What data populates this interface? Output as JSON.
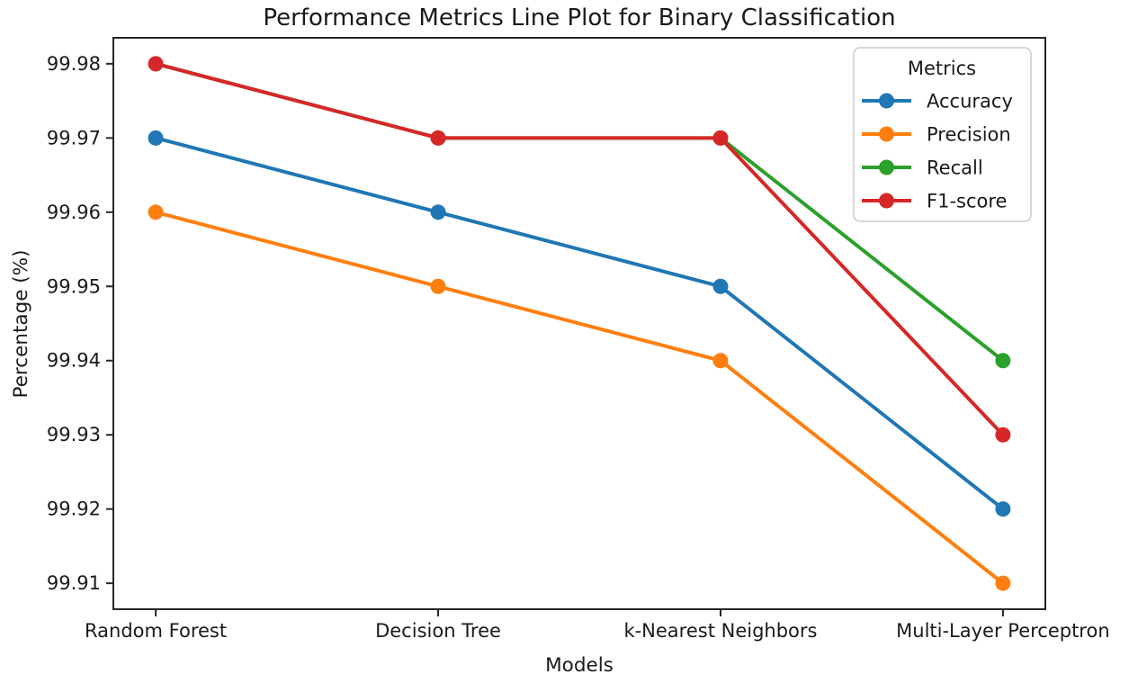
{
  "figure": {
    "background": "#ffffff",
    "text_color": "#1a1a1a",
    "spine_color": "#262626"
  },
  "chart_data": {
    "type": "line",
    "title": "Performance Metrics Line Plot for Binary Classification",
    "xlabel": "Models",
    "ylabel": "Percentage (%)",
    "categories": [
      "Random Forest",
      "Decision Tree",
      "k-Nearest Neighbors",
      "Multi-Layer Perceptron"
    ],
    "series": [
      {
        "name": "Accuracy",
        "color": "#1f77b4",
        "values": [
          99.97,
          99.96,
          99.95,
          99.92
        ]
      },
      {
        "name": "Precision",
        "color": "#ff7f0e",
        "values": [
          99.96,
          99.95,
          99.94,
          99.91
        ]
      },
      {
        "name": "Recall",
        "color": "#2ca02c",
        "values": [
          99.98,
          99.97,
          99.97,
          99.94
        ]
      },
      {
        "name": "F1-score",
        "color": "#d62728",
        "values": [
          99.98,
          99.97,
          99.97,
          99.93
        ]
      }
    ],
    "y_ticks": [
      99.91,
      99.92,
      99.93,
      99.94,
      99.95,
      99.96,
      99.97,
      99.98
    ],
    "y_tick_decimals": 2,
    "ylim": [
      99.9065,
      99.9835
    ],
    "xlim": [
      -0.15,
      3.15
    ],
    "grid": false,
    "marker": "circle",
    "legend": {
      "title": "Metrics",
      "position": "upper right"
    }
  }
}
